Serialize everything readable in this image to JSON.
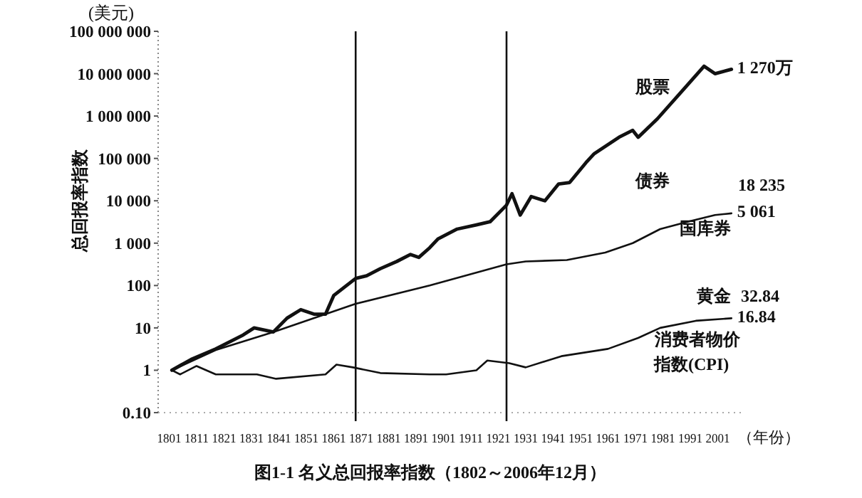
{
  "chart_data": {
    "type": "line",
    "title": "图1-1   名义总回报率指数（1802～2006年12月）",
    "ylabel": "总回报率指数",
    "xlabel": "（年份）",
    "log": true,
    "grid": false,
    "xlim": [
      1797,
      2011
    ],
    "ylim": [
      0.1,
      100000000
    ],
    "xticks": [
      1801,
      1811,
      1821,
      1831,
      1841,
      1851,
      1861,
      1871,
      1881,
      1891,
      1901,
      1911,
      1921,
      1931,
      1941,
      1951,
      1961,
      1971,
      1981,
      1991,
      2001
    ],
    "yticks": [
      {
        "value": 0.1,
        "label": "0.10"
      },
      1,
      10,
      100,
      {
        "value": 1000,
        "label": "1 000"
      },
      {
        "value": 10000,
        "label": "10 000"
      },
      {
        "value": 100000,
        "label": "100 000"
      },
      {
        "value": 1000000,
        "label": "1 000 000"
      },
      {
        "value": 10000000,
        "label": "10 000 000"
      },
      {
        "value": 100000000,
        "label": "100 000 000"
      }
    ],
    "ref_lines": [
      {
        "axis": "x",
        "value": 1869,
        "color": "#111111"
      },
      {
        "axis": "x",
        "value": 1924,
        "color": "#111111"
      }
    ],
    "series": [
      {
        "color": "#111111",
        "x": [
          1802,
          1809,
          1818,
          1828,
          1832,
          1839,
          1844,
          1849,
          1854,
          1858,
          1861,
          1869,
          1873,
          1878,
          1884,
          1889,
          1892,
          1896,
          1899,
          1906,
          1913,
          1918,
          1924,
          1926,
          1929,
          1933,
          1938,
          1943,
          1947,
          1953,
          1956,
          1965,
          1970,
          1972,
          1979,
          1989,
          1996,
          2000,
          2006
        ],
        "values": [
          1,
          1.8,
          3.2,
          6.8,
          10,
          8,
          17,
          27,
          21,
          21,
          58,
          147,
          170,
          250,
          370,
          540,
          460,
          780,
          1260,
          2150,
          2700,
          3200,
          7900,
          14700,
          4600,
          12600,
          10000,
          25000,
          27000,
          80000,
          130000,
          316000,
          460000,
          316000,
          860000,
          4600000,
          15000000,
          10000000,
          12700000
        ]
      },
      {
        "color": "#111111",
        "x": [
          1802,
          1818,
          1839,
          1869,
          1896,
          1924,
          1931,
          1946,
          1960,
          1970,
          1980,
          1990,
          2000,
          2006
        ],
        "values": [
          1,
          3,
          8,
          37,
          100,
          316,
          370,
          400,
          600,
          1000,
          2150,
          3200,
          4600,
          5061
        ]
      },
      {
        "color": "#111111",
        "x": [
          1802,
          1805,
          1811,
          1818,
          1833,
          1840,
          1858,
          1862,
          1868,
          1878,
          1896,
          1902,
          1913,
          1917,
          1925,
          1931,
          1944,
          1961,
          1972,
          1980,
          1993,
          2006
        ],
        "values": [
          1,
          0.8,
          1.26,
          0.8,
          0.8,
          0.63,
          0.8,
          1.36,
          1.17,
          0.86,
          0.8,
          0.8,
          1.0,
          1.7,
          1.47,
          1.17,
          2.15,
          3.2,
          5.8,
          10,
          14.7,
          16.84
        ]
      }
    ],
    "annotations": [
      "(美元)",
      "股票",
      {
        "text": "1 270万",
        "x": 2006,
        "y": 12700000
      },
      "债券",
      "18 235",
      {
        "text": "5 061",
        "x": 2006,
        "y": 5061
      },
      {
        "text": "国库券",
        "x": 1985,
        "y": 2000
      },
      "黄金",
      "32.84",
      {
        "text": "16.84",
        "x": 2006,
        "y": 16.84
      },
      {
        "text": "消费者物价",
        "x": 1976,
        "y": 4.8
      },
      "指数(CPI)"
    ]
  }
}
